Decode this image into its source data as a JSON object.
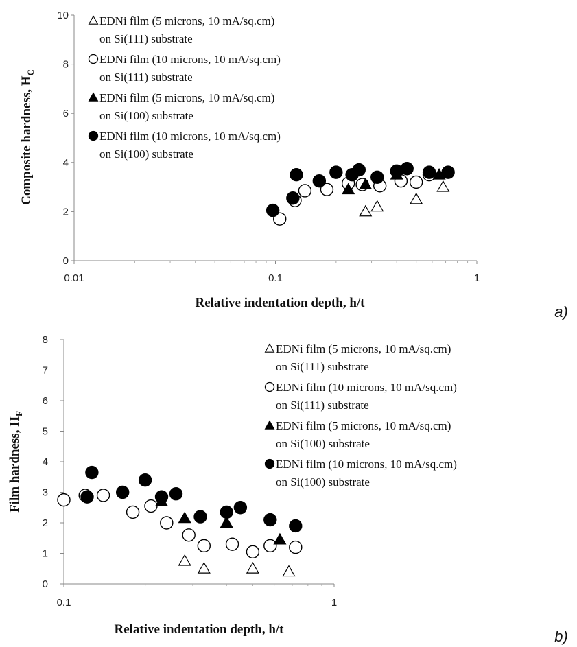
{
  "chart_data": [
    {
      "type": "scatter",
      "panel_label": "a)",
      "xlabel": "Relative indentation depth, h/t",
      "ylabel_main": "Composite hardness, H",
      "ylabel_sub": "C",
      "x_scale": "log",
      "xlim": [
        0.01,
        1
      ],
      "ylim": [
        0,
        10
      ],
      "x_ticks": [
        {
          "value": 0.01,
          "label": "0.01"
        },
        {
          "value": 0.1,
          "label": "0.1"
        },
        {
          "value": 1,
          "label": "1"
        }
      ],
      "y_ticks": [
        {
          "value": 0,
          "label": "0"
        },
        {
          "value": 2,
          "label": "2"
        },
        {
          "value": 4,
          "label": "4"
        },
        {
          "value": 6,
          "label": "6"
        },
        {
          "value": 8,
          "label": "8"
        },
        {
          "value": 10,
          "label": "10"
        }
      ],
      "grid": false,
      "legend_position": "top-left",
      "series": [
        {
          "name_line1": "EDNi film (5 microns, 10 mA/sq.cm)",
          "name_line2": "on Si(111) substrate",
          "marker": "triangle-open",
          "points": [
            [
              0.28,
              2.0
            ],
            [
              0.32,
              2.2
            ],
            [
              0.5,
              2.5
            ],
            [
              0.68,
              3.0
            ]
          ]
        },
        {
          "name_line1": "EDNi film (10 microns, 10 mA/sq.cm)",
          "name_line2": "on Si(111) substrate",
          "marker": "circle-open",
          "points": [
            [
              0.105,
              1.7
            ],
            [
              0.125,
              2.45
            ],
            [
              0.14,
              2.85
            ],
            [
              0.18,
              2.9
            ],
            [
              0.23,
              3.15
            ],
            [
              0.27,
              3.1
            ],
            [
              0.33,
              3.05
            ],
            [
              0.42,
              3.25
            ],
            [
              0.5,
              3.2
            ],
            [
              0.58,
              3.5
            ]
          ]
        },
        {
          "name_line1": "EDNi film (5 microns, 10 mA/sq.cm)",
          "name_line2": "on Si(100) substrate",
          "marker": "triangle-filled",
          "points": [
            [
              0.23,
              2.9
            ],
            [
              0.28,
              3.1
            ],
            [
              0.4,
              3.5
            ],
            [
              0.65,
              3.5
            ]
          ]
        },
        {
          "name_line1": "EDNi film (10 microns, 10 mA/sq.cm)",
          "name_line2": "on Si(100) substrate",
          "marker": "circle-filled",
          "points": [
            [
              0.097,
              2.05
            ],
            [
              0.122,
              2.55
            ],
            [
              0.127,
              3.5
            ],
            [
              0.165,
              3.25
            ],
            [
              0.2,
              3.6
            ],
            [
              0.24,
              3.5
            ],
            [
              0.26,
              3.7
            ],
            [
              0.32,
              3.4
            ],
            [
              0.4,
              3.65
            ],
            [
              0.45,
              3.75
            ],
            [
              0.58,
              3.6
            ],
            [
              0.72,
              3.6
            ]
          ]
        }
      ]
    },
    {
      "type": "scatter",
      "panel_label": "b)",
      "xlabel": "Relative indentation depth, h/t",
      "ylabel_main": "Film hardness, H",
      "ylabel_sub": "F",
      "x_scale": "log",
      "xlim": [
        0.1,
        1
      ],
      "ylim": [
        0,
        8
      ],
      "x_ticks": [
        {
          "value": 0.1,
          "label": "0.1"
        },
        {
          "value": 1,
          "label": "1"
        }
      ],
      "y_ticks": [
        {
          "value": 0,
          "label": "0"
        },
        {
          "value": 1,
          "label": "1"
        },
        {
          "value": 2,
          "label": "2"
        },
        {
          "value": 3,
          "label": "3"
        },
        {
          "value": 4,
          "label": "4"
        },
        {
          "value": 5,
          "label": "5"
        },
        {
          "value": 6,
          "label": "6"
        },
        {
          "value": 7,
          "label": "7"
        },
        {
          "value": 8,
          "label": "8"
        }
      ],
      "grid": false,
      "legend_position": "top-right",
      "series": [
        {
          "name_line1": "EDNi film (5 microns, 10 mA/sq.cm)",
          "name_line2": "on Si(111) substrate",
          "marker": "triangle-open",
          "points": [
            [
              0.28,
              0.75
            ],
            [
              0.33,
              0.5
            ],
            [
              0.5,
              0.5
            ],
            [
              0.68,
              0.4
            ]
          ]
        },
        {
          "name_line1": "EDNi film (10 microns, 10 mA/sq.cm)",
          "name_line2": "on Si(111) substrate",
          "marker": "circle-open",
          "points": [
            [
              0.1,
              2.75
            ],
            [
              0.12,
              2.9
            ],
            [
              0.14,
              2.9
            ],
            [
              0.18,
              2.35
            ],
            [
              0.21,
              2.55
            ],
            [
              0.24,
              2.0
            ],
            [
              0.29,
              1.6
            ],
            [
              0.33,
              1.25
            ],
            [
              0.42,
              1.3
            ],
            [
              0.5,
              1.05
            ],
            [
              0.58,
              1.25
            ],
            [
              0.72,
              1.2
            ]
          ]
        },
        {
          "name_line1": "EDNi film (5 microns, 10 mA/sq.cm)",
          "name_line2": "on Si(100) substrate",
          "marker": "triangle-filled",
          "points": [
            [
              0.23,
              2.7
            ],
            [
              0.28,
              2.15
            ],
            [
              0.4,
              2.0
            ],
            [
              0.63,
              1.45
            ]
          ]
        },
        {
          "name_line1": "EDNi film (10 microns, 10 mA/sq.cm)",
          "name_line2": "on Si(100) substrate",
          "marker": "circle-filled",
          "points": [
            [
              0.122,
              2.85
            ],
            [
              0.127,
              3.65
            ],
            [
              0.165,
              3.0
            ],
            [
              0.2,
              3.4
            ],
            [
              0.23,
              2.85
            ],
            [
              0.26,
              2.95
            ],
            [
              0.32,
              2.2
            ],
            [
              0.4,
              2.35
            ],
            [
              0.45,
              2.5
            ],
            [
              0.58,
              2.1
            ],
            [
              0.72,
              1.9
            ]
          ]
        }
      ]
    }
  ]
}
